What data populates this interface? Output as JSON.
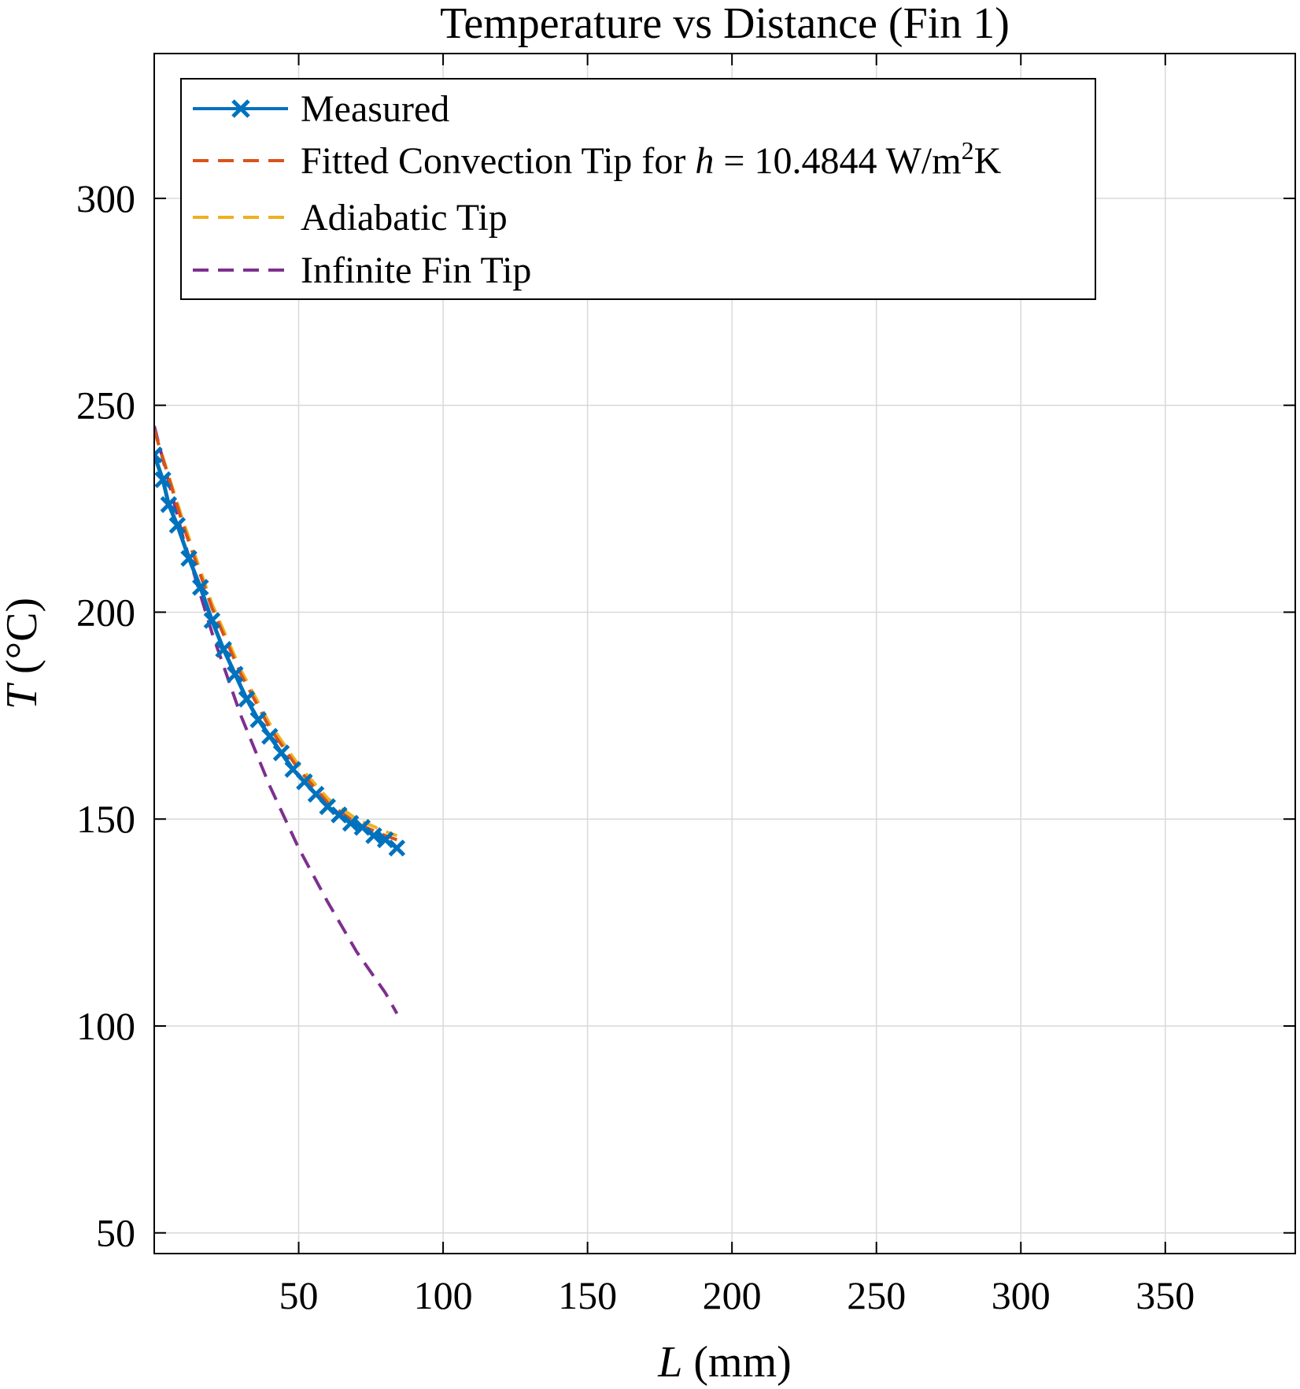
{
  "chart_data": {
    "type": "line",
    "title": "Temperature vs Distance (Fin 1)",
    "xlabel": {
      "italic": "L",
      "rest": " (mm)"
    },
    "ylabel": {
      "italic": "T",
      "rest": " (°C)"
    },
    "xlim": [
      0,
      395
    ],
    "ylim": [
      45,
      335
    ],
    "xticks": [
      50,
      100,
      150,
      200,
      250,
      300,
      350
    ],
    "yticks": [
      50,
      100,
      150,
      200,
      250,
      300
    ],
    "grid": true,
    "legend_position": "top-left",
    "series": [
      {
        "name": "Measured",
        "style": "solid-x",
        "color": "#0072BD",
        "x": [
          0,
          3,
          5,
          8,
          12,
          16,
          20,
          24,
          28,
          32,
          36,
          40,
          44,
          48,
          52,
          56,
          60,
          64,
          68,
          72,
          76,
          80,
          84
        ],
        "y": [
          238,
          232,
          226,
          221,
          213,
          206,
          198,
          191,
          185,
          179,
          174,
          170,
          166,
          162,
          159,
          156,
          153,
          151,
          149,
          148,
          146,
          145,
          143
        ]
      },
      {
        "name": "Fitted Convection Tip for h = 10.4844 W/m2K",
        "label_parts": {
          "pre": "Fitted Convection Tip for ",
          "h": "h",
          "mid": " = 10.4844 W/m",
          "sup": "2",
          "post": "K"
        },
        "style": "dashed",
        "color": "#D95319",
        "x": [
          0,
          10,
          20,
          30,
          40,
          50,
          60,
          70,
          80,
          84
        ],
        "y": [
          244,
          221,
          201,
          185,
          172,
          162,
          154,
          149,
          146,
          145
        ]
      },
      {
        "name": "Adiabatic Tip",
        "style": "dashed",
        "color": "#EDB120",
        "x": [
          0,
          10,
          20,
          30,
          40,
          50,
          60,
          70,
          80,
          84
        ],
        "y": [
          244,
          222,
          202,
          186,
          173,
          163,
          155,
          150,
          147,
          146
        ]
      },
      {
        "name": "Infinite Fin Tip",
        "style": "dashed",
        "color": "#7E2F8E",
        "x": [
          0,
          10,
          20,
          30,
          40,
          50,
          60,
          70,
          80,
          84
        ],
        "y": [
          245,
          218,
          195,
          175,
          158,
          143,
          130,
          118,
          108,
          103
        ]
      }
    ]
  }
}
